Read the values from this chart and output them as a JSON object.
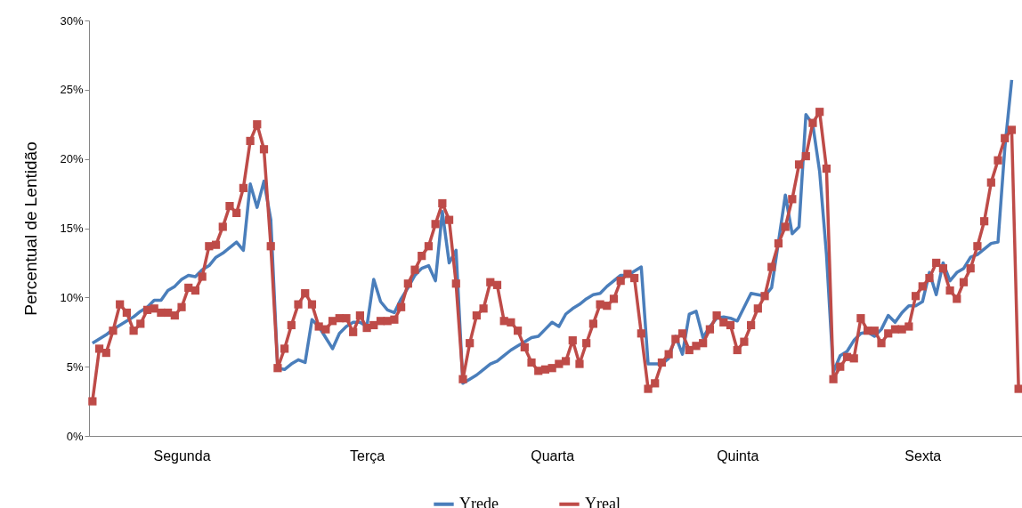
{
  "chart_data": {
    "type": "line",
    "ylabel": "Percentual de Lentidão",
    "categories": [
      null,
      null,
      null,
      null,
      null,
      null,
      null,
      null,
      null,
      null,
      null,
      null,
      null,
      "Segunda",
      null,
      null,
      null,
      null,
      null,
      null,
      null,
      null,
      null,
      null,
      null,
      null,
      null,
      null,
      null,
      null,
      null,
      null,
      null,
      null,
      null,
      null,
      null,
      null,
      null,
      null,
      "Terça",
      null,
      null,
      null,
      null,
      null,
      null,
      null,
      null,
      null,
      null,
      null,
      null,
      null,
      null,
      null,
      null,
      null,
      null,
      null,
      null,
      null,
      null,
      null,
      null,
      null,
      null,
      "Quarta",
      null,
      null,
      null,
      null,
      null,
      null,
      null,
      null,
      null,
      null,
      null,
      null,
      null,
      null,
      null,
      null,
      null,
      null,
      null,
      null,
      null,
      null,
      null,
      null,
      null,
      null,
      "Quinta",
      null,
      null,
      null,
      null,
      null,
      null,
      null,
      null,
      null,
      null,
      null,
      null,
      null,
      null,
      null,
      null,
      null,
      null,
      null,
      null,
      null,
      null,
      null,
      null,
      null,
      null,
      "Sexta",
      null,
      null,
      null,
      null,
      null,
      null,
      null,
      null,
      null,
      null,
      null,
      null,
      null,
      null
    ],
    "series": [
      {
        "name": "Yrede",
        "color": "#4a7ebb",
        "marker": "none",
        "values": [
          6.7,
          7.0,
          7.3,
          7.7,
          8.0,
          8.3,
          8.6,
          9.0,
          9.3,
          9.8,
          9.8,
          10.5,
          10.8,
          11.3,
          11.6,
          11.5,
          12.0,
          12.3,
          12.9,
          13.2,
          13.6,
          14.0,
          13.4,
          18.2,
          16.5,
          18.4,
          15.6,
          4.9,
          4.8,
          5.2,
          5.5,
          5.3,
          8.4,
          7.9,
          7.1,
          6.3,
          7.4,
          7.9,
          8.2,
          8.2,
          7.9,
          11.3,
          9.7,
          9.1,
          8.9,
          9.9,
          10.7,
          11.6,
          12.1,
          12.3,
          11.2,
          16.2,
          12.5,
          13.4,
          3.8,
          4.1,
          4.4,
          4.8,
          5.2,
          5.4,
          5.8,
          6.2,
          6.5,
          6.8,
          7.1,
          7.2,
          7.7,
          8.2,
          7.9,
          8.8,
          9.2,
          9.5,
          9.9,
          10.2,
          10.3,
          10.8,
          11.2,
          11.6,
          11.6,
          11.9,
          12.2,
          5.2,
          5.2,
          5.2,
          5.6,
          7.2,
          5.9,
          8.8,
          9.0,
          7.1,
          7.9,
          8.5,
          8.6,
          8.5,
          8.3,
          9.3,
          10.3,
          10.2,
          10.1,
          10.7,
          14.0,
          17.4,
          14.6,
          15.1,
          23.2,
          22.5,
          19.1,
          13.1,
          4.6,
          5.8,
          6.1,
          6.9,
          7.4,
          7.5,
          7.2,
          7.7,
          8.7,
          8.2,
          8.9,
          9.4,
          9.4,
          9.7,
          11.8,
          10.2,
          12.5,
          11.2,
          11.8,
          12.1,
          12.9,
          13.1,
          13.5,
          13.9,
          14.0,
          20.8,
          25.7,
          null
        ]
      },
      {
        "name": "Yreal",
        "color": "#be4b48",
        "marker": "square",
        "values": [
          2.5,
          6.3,
          6.0,
          7.6,
          9.5,
          8.9,
          7.6,
          8.1,
          9.1,
          9.2,
          8.9,
          8.9,
          8.7,
          9.3,
          10.7,
          10.5,
          11.5,
          13.7,
          13.8,
          15.1,
          16.6,
          16.1,
          17.9,
          21.3,
          22.5,
          20.7,
          13.7,
          4.9,
          6.3,
          8.0,
          9.5,
          10.3,
          9.5,
          7.9,
          7.7,
          8.3,
          8.5,
          8.5,
          7.5,
          8.7,
          7.8,
          8.0,
          8.3,
          8.3,
          8.4,
          9.3,
          11.0,
          12.0,
          13.0,
          13.7,
          15.3,
          16.8,
          15.6,
          11.0,
          4.1,
          6.7,
          8.7,
          9.2,
          11.1,
          10.9,
          8.3,
          8.2,
          7.6,
          6.4,
          5.3,
          4.7,
          4.8,
          4.9,
          5.2,
          5.4,
          6.9,
          5.2,
          6.7,
          8.1,
          9.5,
          9.4,
          9.9,
          11.2,
          11.7,
          11.4,
          7.4,
          3.4,
          3.8,
          5.3,
          5.9,
          7.0,
          7.4,
          6.2,
          6.5,
          6.7,
          7.7,
          8.7,
          8.2,
          8.0,
          6.2,
          6.8,
          8.0,
          9.2,
          10.1,
          12.2,
          13.9,
          15.1,
          17.1,
          19.6,
          20.2,
          22.6,
          23.4,
          19.3,
          4.1,
          5.0,
          5.7,
          5.6,
          8.5,
          7.6,
          7.6,
          6.7,
          7.4,
          7.7,
          7.7,
          7.9,
          10.1,
          10.8,
          11.4,
          12.5,
          12.1,
          10.5,
          9.9,
          11.1,
          12.1,
          13.7,
          15.5,
          18.3,
          19.9,
          21.5,
          22.1,
          3.4
        ]
      }
    ],
    "ylim": [
      0,
      30
    ],
    "yticks": [
      {
        "value": 0,
        "label": "0%"
      },
      {
        "value": 5,
        "label": "5%"
      },
      {
        "value": 10,
        "label": "10%"
      },
      {
        "value": 15,
        "label": "15%"
      },
      {
        "value": 20,
        "label": "20%"
      },
      {
        "value": 25,
        "label": "25%"
      },
      {
        "value": 30,
        "label": "30%"
      }
    ],
    "grid": false,
    "legend": "bottom"
  }
}
